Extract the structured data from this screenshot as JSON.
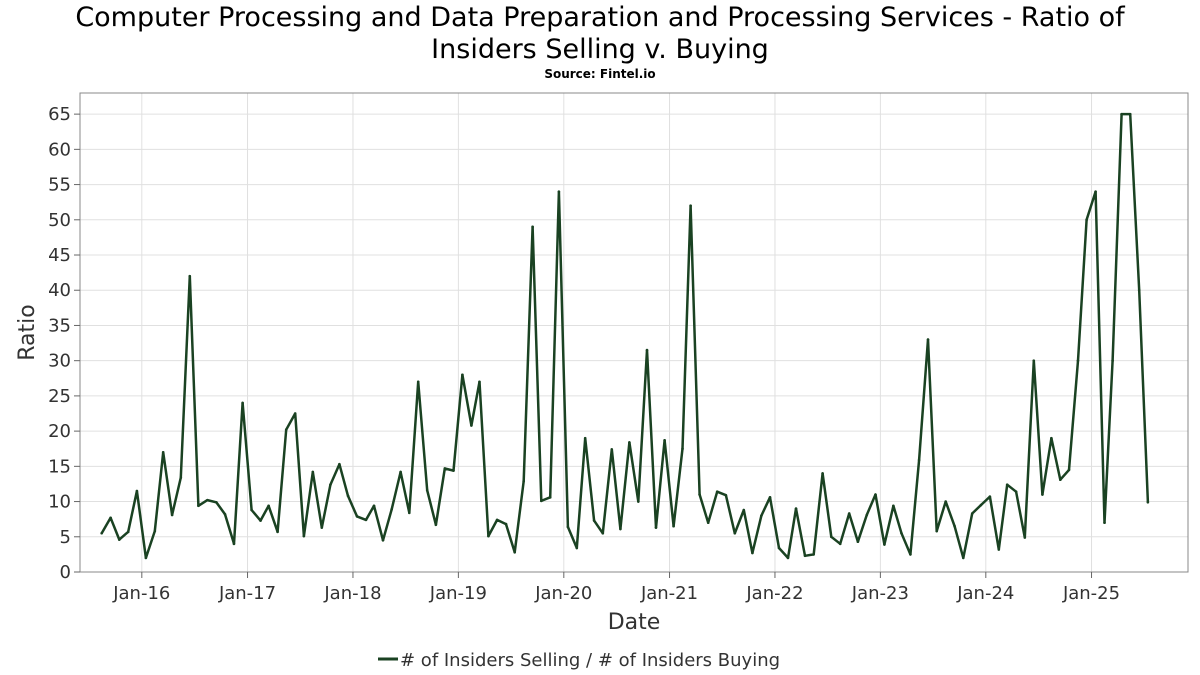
{
  "title_line1": "Computer Processing and Data Preparation and Processing Services - Ratio of",
  "title_line2": "Insiders Selling v. Buying",
  "subtitle": "Source: Fintel.io",
  "colors": {
    "series": "#1a4222",
    "grid": "#e0e0e0",
    "frame": "#888888"
  },
  "chart_data": {
    "type": "line",
    "title": "Computer Processing and Data Preparation and Processing Services - Ratio of Insiders Selling v. Buying",
    "subtitle": "Source: Fintel.io",
    "xlabel": "Date",
    "ylabel": "Ratio",
    "ylim": [
      0,
      68
    ],
    "xlim": [
      "2015-06-01",
      "2025-12-01"
    ],
    "yticks": [
      0,
      5,
      10,
      15,
      20,
      25,
      30,
      35,
      40,
      45,
      50,
      55,
      60,
      65
    ],
    "xticks": [
      {
        "date": "2016-01-01",
        "label": "Jan-16"
      },
      {
        "date": "2017-01-01",
        "label": "Jan-17"
      },
      {
        "date": "2018-01-01",
        "label": "Jan-18"
      },
      {
        "date": "2019-01-01",
        "label": "Jan-19"
      },
      {
        "date": "2020-01-01",
        "label": "Jan-20"
      },
      {
        "date": "2021-01-01",
        "label": "Jan-21"
      },
      {
        "date": "2022-01-01",
        "label": "Jan-22"
      },
      {
        "date": "2023-01-01",
        "label": "Jan-23"
      },
      {
        "date": "2024-01-01",
        "label": "Jan-24"
      },
      {
        "date": "2025-01-01",
        "label": "Jan-25"
      }
    ],
    "grid": true,
    "legend": "bottom-center",
    "series": [
      {
        "name": "# of Insiders Selling / # of Insiders Buying",
        "points": [
          [
            "2015-08-15",
            5.5
          ],
          [
            "2015-09-15",
            7.7
          ],
          [
            "2015-10-15",
            4.6
          ],
          [
            "2015-11-15",
            5.7
          ],
          [
            "2015-12-15",
            11.5
          ],
          [
            "2016-01-15",
            2.0
          ],
          [
            "2016-02-15",
            5.8
          ],
          [
            "2016-03-15",
            17.0
          ],
          [
            "2016-04-15",
            8.1
          ],
          [
            "2016-05-15",
            13.4
          ],
          [
            "2016-06-15",
            42.0
          ],
          [
            "2016-07-15",
            9.4
          ],
          [
            "2016-08-15",
            10.2
          ],
          [
            "2016-09-15",
            9.9
          ],
          [
            "2016-10-15",
            8.2
          ],
          [
            "2016-11-15",
            4.0
          ],
          [
            "2016-12-15",
            24.0
          ],
          [
            "2017-01-15",
            8.8
          ],
          [
            "2017-02-15",
            7.3
          ],
          [
            "2017-03-15",
            9.4
          ],
          [
            "2017-04-15",
            5.7
          ],
          [
            "2017-05-15",
            20.2
          ],
          [
            "2017-06-15",
            22.5
          ],
          [
            "2017-07-15",
            5.1
          ],
          [
            "2017-08-15",
            14.2
          ],
          [
            "2017-09-15",
            6.3
          ],
          [
            "2017-10-15",
            12.4
          ],
          [
            "2017-11-15",
            15.3
          ],
          [
            "2017-12-15",
            10.8
          ],
          [
            "2018-01-15",
            7.9
          ],
          [
            "2018-02-15",
            7.4
          ],
          [
            "2018-03-15",
            9.4
          ],
          [
            "2018-04-15",
            4.5
          ],
          [
            "2018-05-15",
            8.9
          ],
          [
            "2018-06-15",
            14.2
          ],
          [
            "2018-07-15",
            8.4
          ],
          [
            "2018-08-15",
            27.0
          ],
          [
            "2018-09-15",
            11.6
          ],
          [
            "2018-10-15",
            6.7
          ],
          [
            "2018-11-15",
            14.7
          ],
          [
            "2018-12-15",
            14.4
          ],
          [
            "2019-01-15",
            28.0
          ],
          [
            "2019-02-15",
            20.8
          ],
          [
            "2019-03-15",
            27.0
          ],
          [
            "2019-04-15",
            5.1
          ],
          [
            "2019-05-15",
            7.4
          ],
          [
            "2019-06-15",
            6.8
          ],
          [
            "2019-07-15",
            2.8
          ],
          [
            "2019-08-15",
            12.9
          ],
          [
            "2019-09-15",
            49.0
          ],
          [
            "2019-10-15",
            10.1
          ],
          [
            "2019-11-15",
            10.6
          ],
          [
            "2019-12-15",
            54.0
          ],
          [
            "2020-01-15",
            6.4
          ],
          [
            "2020-02-15",
            3.4
          ],
          [
            "2020-03-15",
            19.0
          ],
          [
            "2020-04-15",
            7.3
          ],
          [
            "2020-05-15",
            5.5
          ],
          [
            "2020-06-15",
            17.4
          ],
          [
            "2020-07-15",
            6.1
          ],
          [
            "2020-08-15",
            18.4
          ],
          [
            "2020-09-15",
            10.0
          ],
          [
            "2020-10-15",
            31.5
          ],
          [
            "2020-11-15",
            6.3
          ],
          [
            "2020-12-15",
            18.7
          ],
          [
            "2021-01-15",
            6.5
          ],
          [
            "2021-02-15",
            17.5
          ],
          [
            "2021-03-15",
            52.0
          ],
          [
            "2021-04-15",
            11.0
          ],
          [
            "2021-05-15",
            7.0
          ],
          [
            "2021-06-15",
            11.4
          ],
          [
            "2021-07-15",
            10.9
          ],
          [
            "2021-08-15",
            5.5
          ],
          [
            "2021-09-15",
            8.8
          ],
          [
            "2021-10-15",
            2.7
          ],
          [
            "2021-11-15",
            8.0
          ],
          [
            "2021-12-15",
            10.6
          ],
          [
            "2022-01-15",
            3.4
          ],
          [
            "2022-02-15",
            2.0
          ],
          [
            "2022-03-15",
            9.0
          ],
          [
            "2022-04-15",
            2.3
          ],
          [
            "2022-05-15",
            2.5
          ],
          [
            "2022-06-15",
            14.0
          ],
          [
            "2022-07-15",
            5.0
          ],
          [
            "2022-08-15",
            4.0
          ],
          [
            "2022-09-15",
            8.3
          ],
          [
            "2022-10-15",
            4.3
          ],
          [
            "2022-11-15",
            8.1
          ],
          [
            "2022-12-15",
            11.0
          ],
          [
            "2023-01-15",
            3.9
          ],
          [
            "2023-02-15",
            9.4
          ],
          [
            "2023-03-15",
            5.5
          ],
          [
            "2023-04-15",
            2.5
          ],
          [
            "2023-05-15",
            15.9
          ],
          [
            "2023-06-15",
            33.0
          ],
          [
            "2023-07-15",
            5.8
          ],
          [
            "2023-08-15",
            10.0
          ],
          [
            "2023-09-15",
            6.5
          ],
          [
            "2023-10-15",
            2.0
          ],
          [
            "2023-11-15",
            8.3
          ],
          [
            "2023-12-15",
            9.5
          ],
          [
            "2024-01-15",
            10.7
          ],
          [
            "2024-02-15",
            3.2
          ],
          [
            "2024-03-15",
            12.4
          ],
          [
            "2024-04-15",
            11.4
          ],
          [
            "2024-05-15",
            4.9
          ],
          [
            "2024-06-15",
            30.0
          ],
          [
            "2024-07-15",
            11.0
          ],
          [
            "2024-08-15",
            19.0
          ],
          [
            "2024-09-15",
            13.1
          ],
          [
            "2024-10-15",
            14.5
          ],
          [
            "2024-11-15",
            30.0
          ],
          [
            "2024-12-15",
            50.0
          ],
          [
            "2025-01-15",
            54.0
          ],
          [
            "2025-02-15",
            7.0
          ],
          [
            "2025-03-15",
            30.0
          ],
          [
            "2025-04-15",
            65.0
          ],
          [
            "2025-05-15",
            65.0
          ],
          [
            "2025-06-15",
            40.0
          ],
          [
            "2025-07-15",
            9.9
          ]
        ]
      }
    ]
  }
}
